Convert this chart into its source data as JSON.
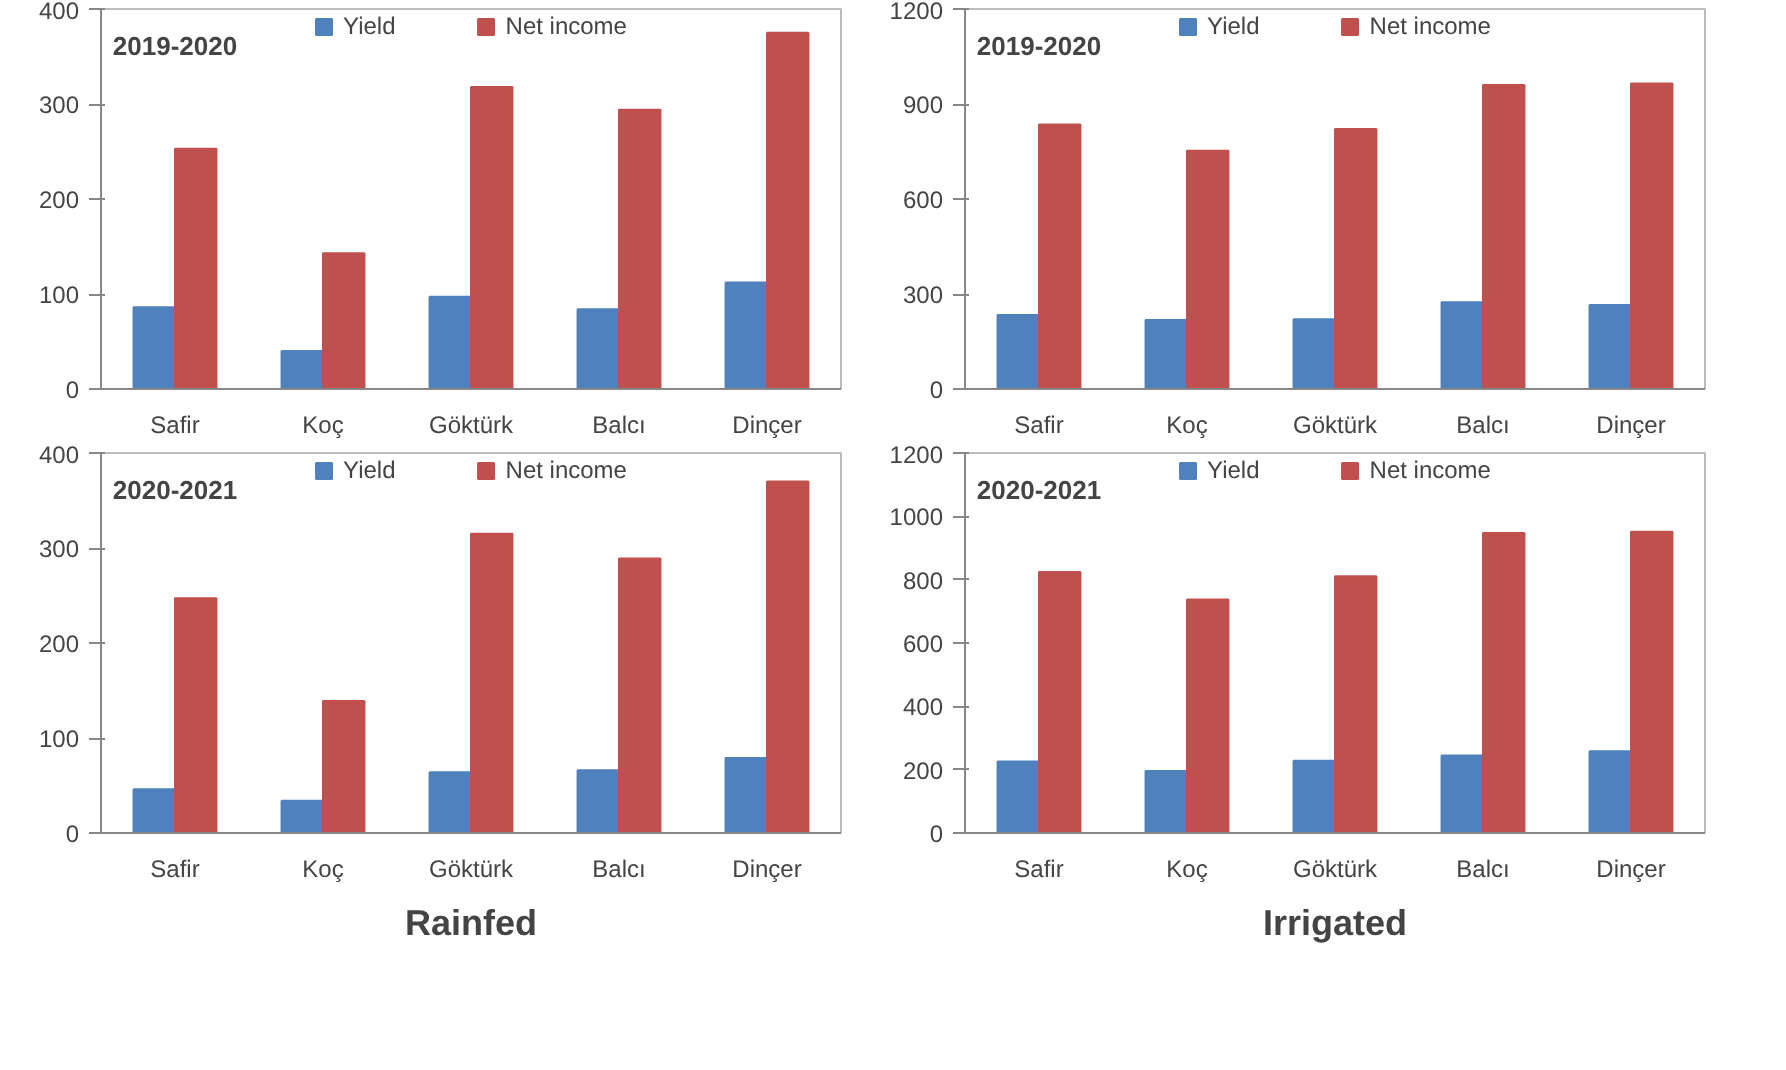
{
  "chart_data": [
    {
      "type": "bar",
      "title": "2019-2020",
      "categories": [
        "Safir",
        "Koç",
        "Göktürk",
        "Balcı",
        "Dinçer"
      ],
      "series": [
        {
          "name": "Yield",
          "color": "#4f81bd",
          "values": [
            86,
            40,
            97,
            84,
            112
          ]
        },
        {
          "name": "Net income",
          "color": "#c0504d",
          "values": [
            253,
            143,
            318,
            294,
            375
          ]
        }
      ],
      "ylim": [
        0,
        400
      ],
      "yticks": [
        0,
        100,
        200,
        300,
        400
      ],
      "grid": false,
      "legend": "top"
    },
    {
      "type": "bar",
      "title": "2019-2020",
      "categories": [
        "Safir",
        "Koç",
        "Göktürk",
        "Balcı",
        "Dinçer"
      ],
      "series": [
        {
          "name": "Yield",
          "color": "#4f81bd",
          "values": [
            234,
            218,
            220,
            274,
            265
          ]
        },
        {
          "name": "Net income",
          "color": "#c0504d",
          "values": [
            835,
            752,
            821,
            960,
            965
          ]
        }
      ],
      "ylim": [
        0,
        1200
      ],
      "yticks": [
        0,
        300,
        600,
        900,
        1200
      ],
      "grid": false,
      "legend": "top"
    },
    {
      "type": "bar",
      "title": "2020-2021",
      "categories": [
        "Safir",
        "Koç",
        "Göktürk",
        "Balcı",
        "Dinçer"
      ],
      "series": [
        {
          "name": "Yield",
          "color": "#4f81bd",
          "values": [
            46,
            34,
            64,
            66,
            79
          ]
        },
        {
          "name": "Net income",
          "color": "#c0504d",
          "values": [
            247,
            139,
            315,
            289,
            370
          ]
        }
      ],
      "ylim": [
        0,
        400
      ],
      "yticks": [
        0,
        100,
        200,
        300,
        400
      ],
      "grid": false,
      "legend": "top",
      "annotations": [
        "Rainfed"
      ]
    },
    {
      "type": "bar",
      "title": "2020-2021",
      "categories": [
        "Safir",
        "Koç",
        "Göktürk",
        "Balcı",
        "Dinçer"
      ],
      "series": [
        {
          "name": "Yield",
          "color": "#4f81bd",
          "values": [
            226,
            196,
            228,
            245,
            258
          ]
        },
        {
          "name": "Net income",
          "color": "#c0504d",
          "values": [
            824,
            737,
            811,
            947,
            951
          ]
        }
      ],
      "ylim": [
        0,
        1200
      ],
      "yticks": [
        0,
        200,
        400,
        600,
        800,
        1000,
        1200
      ],
      "grid": false,
      "legend": "top",
      "annotations": [
        "Irrigated"
      ]
    }
  ]
}
